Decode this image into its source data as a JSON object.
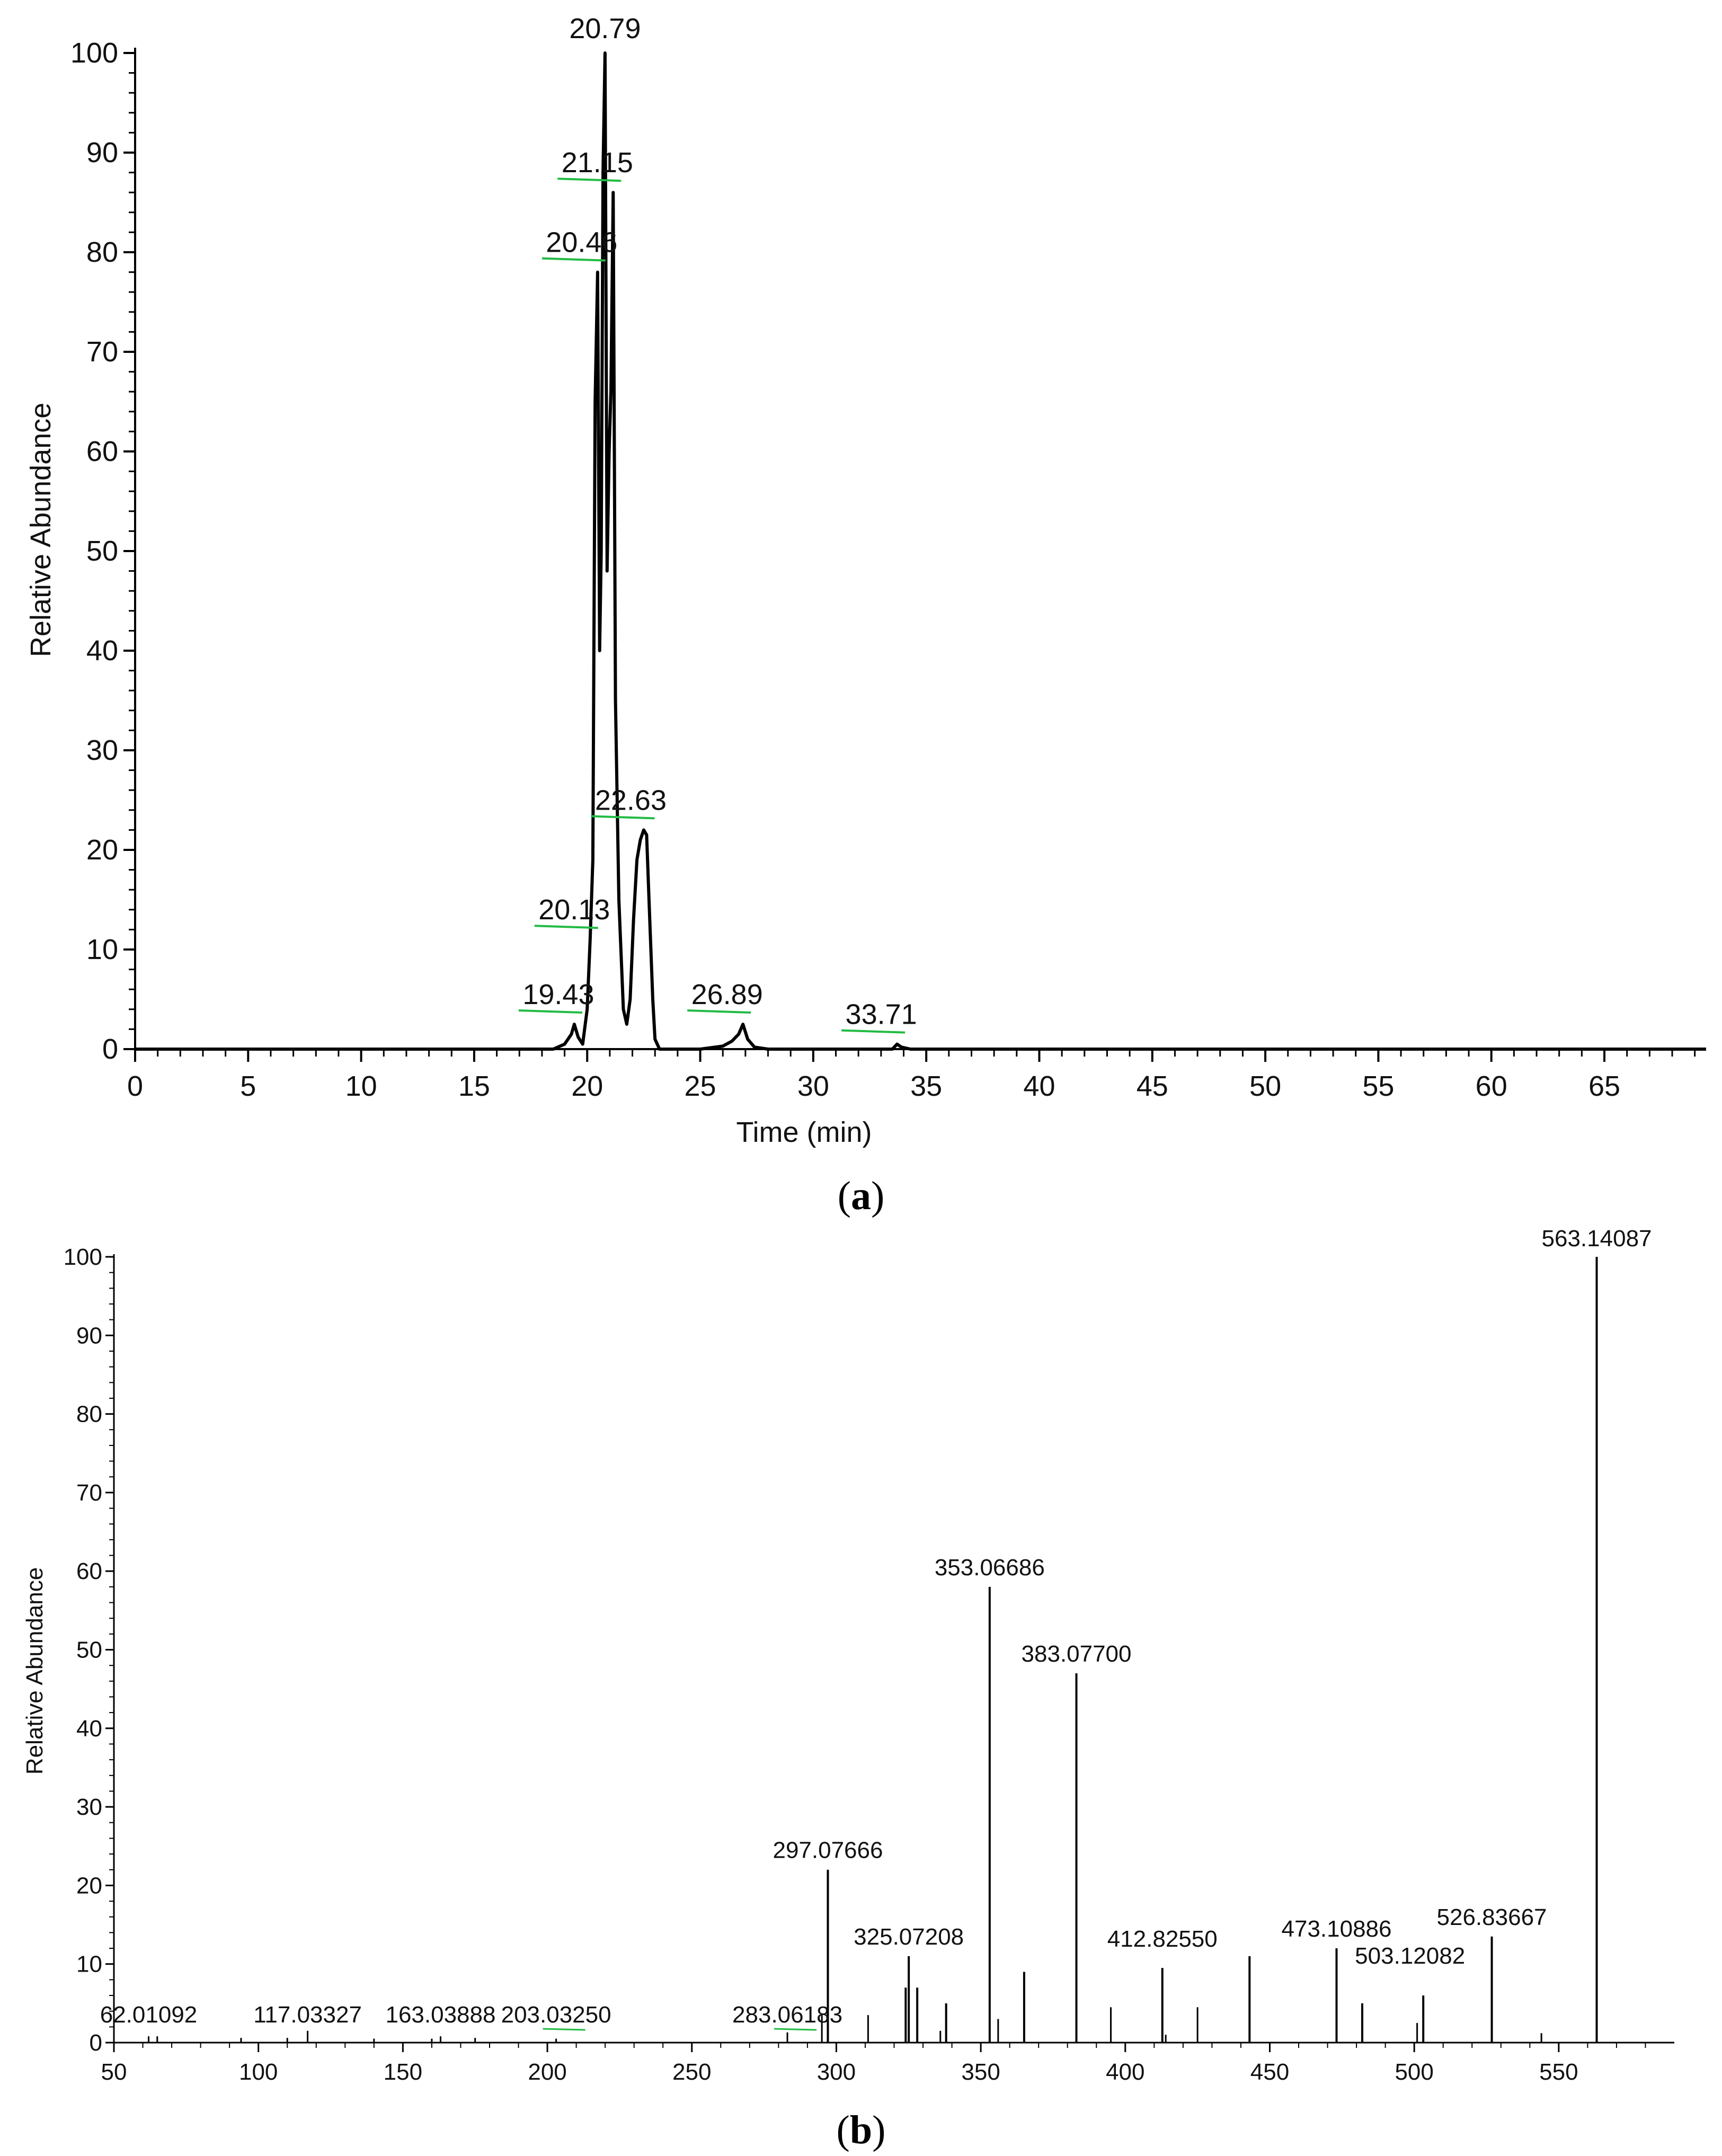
{
  "chart_data": [
    {
      "type": "line",
      "panel_label": "a",
      "title": "",
      "xlabel": "Time (min)",
      "ylabel": "Relative Abundance",
      "xlim": [
        0,
        69.5
      ],
      "ylim": [
        0,
        100
      ],
      "x_ticks": [
        "0",
        "5",
        "10",
        "15",
        "20",
        "25",
        "30",
        "35",
        "40",
        "45",
        "50",
        "55",
        "60",
        "65"
      ],
      "y_ticks": [
        "0",
        "10",
        "20",
        "30",
        "40",
        "50",
        "60",
        "70",
        "80",
        "90",
        "100"
      ],
      "grid": false,
      "series": [
        {
          "x": [
            0,
            18.5,
            19.0,
            19.3,
            19.43,
            19.6,
            19.8,
            20.0,
            20.13,
            20.25,
            20.35,
            20.46,
            20.55,
            20.62,
            20.7,
            20.79,
            20.88,
            20.97,
            21.05,
            21.15,
            21.25,
            21.4,
            21.6,
            21.75,
            21.9,
            22.05,
            22.2,
            22.35,
            22.5,
            22.63,
            22.75,
            22.9,
            23.0,
            23.2,
            23.5,
            25.0,
            26.0,
            26.4,
            26.7,
            26.89,
            27.1,
            27.4,
            28.0,
            33.5,
            33.71,
            33.9,
            34.3,
            69.5
          ],
          "y": [
            0,
            0,
            0.5,
            1.5,
            2.5,
            1.2,
            0.5,
            4,
            11,
            19,
            65,
            78,
            40,
            50,
            88,
            100,
            48,
            60,
            66,
            86,
            35,
            15,
            4,
            2.5,
            5,
            13,
            19,
            21,
            22,
            21.5,
            14,
            5,
            1,
            0,
            0,
            0,
            0.3,
            0.8,
            1.5,
            2.5,
            1.0,
            0.2,
            0,
            0,
            0.5,
            0.2,
            0,
            0
          ]
        }
      ],
      "annotations": [
        {
          "x": 20.79,
          "y": 100,
          "text": "20.79"
        },
        {
          "x": 21.15,
          "y": 86,
          "text": "21.15"
        },
        {
          "x": 20.46,
          "y": 78,
          "text": "20.46"
        },
        {
          "x": 22.63,
          "y": 22,
          "text": "22.63"
        },
        {
          "x": 20.13,
          "y": 11,
          "text": "20.13"
        },
        {
          "x": 19.43,
          "y": 2.5,
          "text": "19.43"
        },
        {
          "x": 26.89,
          "y": 2.5,
          "text": "26.89"
        },
        {
          "x": 33.71,
          "y": 0.5,
          "text": "33.71"
        }
      ]
    },
    {
      "type": "bar",
      "panel_label": "b",
      "title": "",
      "xlabel": "",
      "ylabel": "Relative Abundance",
      "xlim": [
        50,
        590
      ],
      "ylim": [
        0,
        100
      ],
      "x_ticks": [
        "50",
        "100",
        "150",
        "200",
        "250",
        "300",
        "350",
        "400",
        "450",
        "500",
        "550"
      ],
      "y_ticks": [
        "0",
        "10",
        "20",
        "30",
        "40",
        "50",
        "60",
        "70",
        "80",
        "90",
        "100"
      ],
      "grid": false,
      "mz": [
        62.01092,
        65,
        94,
        110,
        117.03327,
        140,
        160,
        163.03888,
        175,
        203.0325,
        283.06183,
        295,
        297.07666,
        311,
        324,
        325.07208,
        328,
        336,
        338,
        353.06686,
        356,
        365,
        383.077,
        395,
        412.8255,
        414,
        425,
        443,
        473.10886,
        482,
        501,
        503.12082,
        526.83667,
        544,
        563.14087
      ],
      "intensity": [
        0.8,
        0.8,
        0.6,
        0.6,
        1.5,
        0.5,
        0.5,
        0.8,
        0.6,
        0.5,
        1.3,
        3.5,
        22,
        3.5,
        7,
        11,
        7,
        1.5,
        5,
        58,
        3,
        9,
        47,
        4.5,
        9.5,
        1,
        4.5,
        11,
        12,
        5,
        2.5,
        6,
        13.5,
        1.2,
        100
      ],
      "annotations": [
        {
          "x": 563.14087,
          "y": 100,
          "text": "563.14087"
        },
        {
          "x": 353.06686,
          "y": 58,
          "text": "353.06686"
        },
        {
          "x": 383.077,
          "y": 47,
          "text": "383.07700"
        },
        {
          "x": 297.07666,
          "y": 22,
          "text": "297.07666"
        },
        {
          "x": 325.07208,
          "y": 11,
          "text": "325.07208"
        },
        {
          "x": 412.8255,
          "y": 9.5,
          "text": "412.82550"
        },
        {
          "x": 473.10886,
          "y": 12,
          "text": "473.10886"
        },
        {
          "x": 526.83667,
          "y": 13.5,
          "text": "526.83667"
        },
        {
          "x": 503.12082,
          "y": 6,
          "text": "503.12082"
        },
        {
          "x": 283.06183,
          "y": 1.3,
          "text": "283.06183"
        },
        {
          "x": 203.0325,
          "y": 0.5,
          "text": "203.03250"
        },
        {
          "x": 163.03888,
          "y": 0.8,
          "text": "163.03888"
        },
        {
          "x": 117.03327,
          "y": 1.5,
          "text": "117.03327"
        },
        {
          "x": 62.01092,
          "y": 0.8,
          "text": "62.01092"
        }
      ]
    }
  ],
  "captions": {
    "a": "(a)",
    "b": "(b)"
  },
  "colors": {
    "trace": "#000000",
    "label_tick": "#22bb44",
    "axis": "#000000"
  }
}
